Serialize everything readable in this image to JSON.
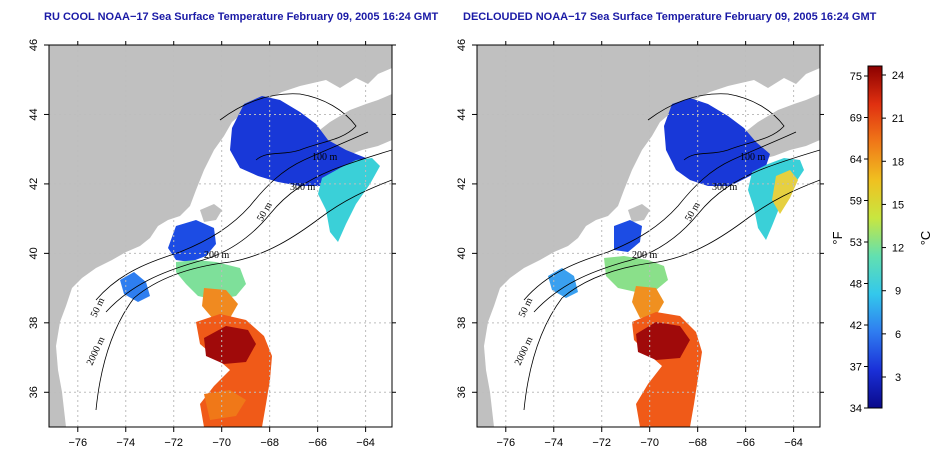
{
  "titles": {
    "left": "RU COOL NOAA−17 Sea Surface Temperature February 09, 2005 16:24 GMT",
    "right": "DECLOUDED NOAA−17 Sea Surface Temperature February 09, 2005 16:24 GMT"
  },
  "axes": {
    "x_ticks": [
      "−76",
      "−74",
      "−72",
      "−70",
      "−68",
      "−66",
      "−64"
    ],
    "x_values": [
      -76,
      -74,
      -72,
      -70,
      -68,
      -66,
      -64
    ],
    "y_ticks": [
      "36",
      "38",
      "40",
      "42",
      "44",
      "46"
    ],
    "y_values": [
      36,
      38,
      40,
      42,
      44,
      46
    ],
    "lon_range": [
      -77.2,
      -62.9
    ],
    "lat_range": [
      35.0,
      46.0
    ]
  },
  "contours": {
    "left": [
      "100 m",
      "300 m",
      "50 m",
      "200 m",
      "50 m",
      "2000 m"
    ],
    "right": [
      "100 m",
      "300 m",
      "50 m",
      "200 m",
      "50 m",
      "2000 m"
    ]
  },
  "colorbar": {
    "fahrenheit_unit": "°F",
    "celsius_unit": "°C",
    "fahrenheit_ticks": [
      "75",
      "69",
      "64",
      "59",
      "53",
      "48",
      "42",
      "37",
      "34"
    ],
    "celsius_ticks": [
      "24",
      "21",
      "18",
      "15",
      "12",
      "9",
      "6",
      "3"
    ],
    "stops": [
      "#0a0a8a",
      "#1a30d8",
      "#2f7cf0",
      "#33c8ec",
      "#62e0b0",
      "#c8e640",
      "#f0c020",
      "#f07818",
      "#e03010",
      "#8b0000"
    ]
  },
  "colors": {
    "land": "#c0c0c0",
    "sea": "#ffffff",
    "title": "#1a1aa6",
    "grid": "#bdbdbd"
  }
}
